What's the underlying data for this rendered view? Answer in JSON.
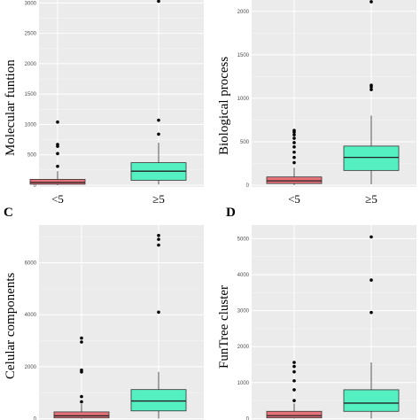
{
  "chart_data": [
    {
      "type": "box",
      "panel_label": "",
      "ylabel": "Molecular funtion",
      "categories": [
        "<5",
        "≥5"
      ],
      "y_ticks": [
        "0",
        "500",
        "1000",
        "1500",
        "2000",
        "2500",
        "3000"
      ],
      "ylim": [
        -30,
        3050
      ],
      "grid": true,
      "series": [
        {
          "category": "<5",
          "color": "#e8737b",
          "whisker_low": 0,
          "q1": 15,
          "median": 45,
          "q3": 95,
          "whisker_high": 230,
          "outliers": [
            310,
            520,
            640,
            670,
            1040
          ]
        },
        {
          "category": "≥5",
          "color": "#54f0c1",
          "whisker_low": 10,
          "q1": 80,
          "median": 230,
          "q3": 370,
          "whisker_high": 700,
          "outliers": [
            840,
            1070,
            3030
          ]
        }
      ]
    },
    {
      "type": "box",
      "panel_label": "",
      "ylabel": "Biological process",
      "categories": [
        "<5",
        "≥5"
      ],
      "y_ticks": [
        "0",
        "500",
        "1000",
        "1500",
        "2000"
      ],
      "ylim": [
        -20,
        2130
      ],
      "grid": true,
      "series": [
        {
          "category": "<5",
          "color": "#e8737b",
          "whisker_low": 0,
          "q1": 20,
          "median": 50,
          "q3": 95,
          "whisker_high": 200,
          "outliers": [
            260,
            320,
            380,
            440,
            490,
            540,
            580,
            610,
            630
          ]
        },
        {
          "category": "≥5",
          "color": "#54f0c1",
          "whisker_low": 10,
          "q1": 170,
          "median": 320,
          "q3": 450,
          "whisker_high": 800,
          "outliers": [
            1100,
            1130,
            1150,
            2110
          ]
        }
      ]
    },
    {
      "type": "box",
      "panel_label": "C",
      "ylabel": "Celular components",
      "categories": [],
      "y_ticks": [
        "0",
        "2000",
        "4000",
        "6000"
      ],
      "ylim": [
        -50,
        7450
      ],
      "grid": true,
      "series": [
        {
          "category": "",
          "color": "#e8737b",
          "whisker_low": 0,
          "q1": 30,
          "median": 110,
          "q3": 260,
          "whisker_high": 560,
          "outliers": [
            650,
            850,
            1800,
            1870,
            2950,
            3100
          ]
        },
        {
          "category": "",
          "color": "#54f0c1",
          "whisker_low": 0,
          "q1": 300,
          "median": 680,
          "q3": 1120,
          "whisker_high": 1800,
          "outliers": [
            4100,
            6680,
            6900,
            7050
          ]
        }
      ]
    },
    {
      "type": "box",
      "panel_label": "D",
      "ylabel": "FunTree cluster",
      "categories": [],
      "y_ticks": [
        "0",
        "1000",
        "2000",
        "3000",
        "4000",
        "5000"
      ],
      "ylim": [
        -40,
        5380
      ],
      "grid": true,
      "series": [
        {
          "category": "",
          "color": "#e8737b",
          "whisker_low": 0,
          "q1": 20,
          "median": 80,
          "q3": 200,
          "whisker_high": 420,
          "outliers": [
            500,
            800,
            1050,
            1300,
            1450,
            1560
          ]
        },
        {
          "category": "",
          "color": "#54f0c1",
          "whisker_low": 0,
          "q1": 200,
          "median": 430,
          "q3": 800,
          "whisker_high": 1560,
          "outliers": [
            2950,
            3850,
            5050
          ]
        }
      ]
    }
  ]
}
